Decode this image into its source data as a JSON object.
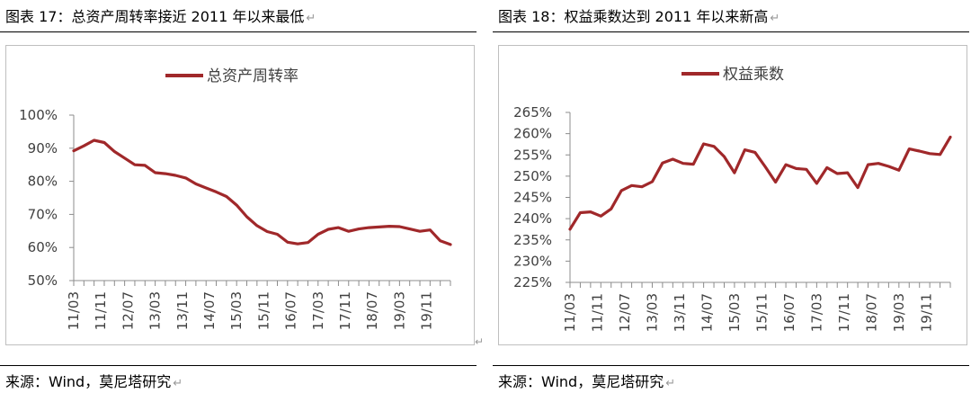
{
  "figures": [
    {
      "title": "图表 17：总资产周转率接近 2011 年以来最低",
      "source": "来源：Wind，莫尼塔研究",
      "chart_data": {
        "type": "line",
        "title": "",
        "xlabel": "",
        "ylabel": "",
        "legend": "top",
        "grid": false,
        "color": "#a0282a",
        "ylim": [
          50,
          100
        ],
        "y_ticks": [
          "100%",
          "90%",
          "80%",
          "70%",
          "60%",
          "50%"
        ],
        "y_tick_values": [
          100,
          90,
          80,
          70,
          60,
          50
        ],
        "x_tick_labels": [
          "11/03",
          "11/11",
          "12/07",
          "13/03",
          "13/11",
          "14/07",
          "15/03",
          "15/11",
          "16/07",
          "17/03",
          "17/11",
          "18/07",
          "19/03",
          "19/11"
        ],
        "series": [
          {
            "name": "总资产周转率",
            "values": [
              89.2,
              90.7,
              92.4,
              91.7,
              89.0,
              87.0,
              85.0,
              84.8,
              82.6,
              82.3,
              81.8,
              81.0,
              79.2,
              78.0,
              76.8,
              75.4,
              72.8,
              69.3,
              66.6,
              64.8,
              64.0,
              61.6,
              61.1,
              61.5,
              64.0,
              65.5,
              66.0,
              64.9,
              65.6,
              66.0,
              66.2,
              66.4,
              66.3,
              65.6,
              64.9,
              65.3,
              62.0,
              60.9
            ]
          }
        ]
      }
    },
    {
      "title": "图表 18：权益乘数达到 2011 年以来新高",
      "source": "来源：Wind，莫尼塔研究",
      "chart_data": {
        "type": "line",
        "title": "",
        "xlabel": "",
        "ylabel": "",
        "legend": "top",
        "grid": false,
        "color": "#a0282a",
        "ylim": [
          225,
          265
        ],
        "y_ticks": [
          "265%",
          "260%",
          "255%",
          "250%",
          "245%",
          "240%",
          "235%",
          "230%",
          "225%"
        ],
        "y_tick_values": [
          265,
          260,
          255,
          250,
          245,
          240,
          235,
          230,
          225
        ],
        "x_tick_labels": [
          "11/03",
          "11/11",
          "12/07",
          "13/03",
          "13/11",
          "14/07",
          "15/03",
          "15/11",
          "16/07",
          "17/03",
          "17/11",
          "18/07",
          "19/03",
          "19/11"
        ],
        "series": [
          {
            "name": "权益乘数",
            "values": [
              237.5,
              241.4,
              241.6,
              240.6,
              242.3,
              246.6,
              247.8,
              247.5,
              248.7,
              253.1,
              254.0,
              253.0,
              252.8,
              257.6,
              257.0,
              254.6,
              250.8,
              256.2,
              255.6,
              252.2,
              248.6,
              252.7,
              251.8,
              251.6,
              248.3,
              252.0,
              250.6,
              250.8,
              247.3,
              252.7,
              253.0,
              252.3,
              251.4,
              256.4,
              255.9,
              255.3,
              255.1,
              259.2
            ]
          }
        ]
      }
    }
  ]
}
